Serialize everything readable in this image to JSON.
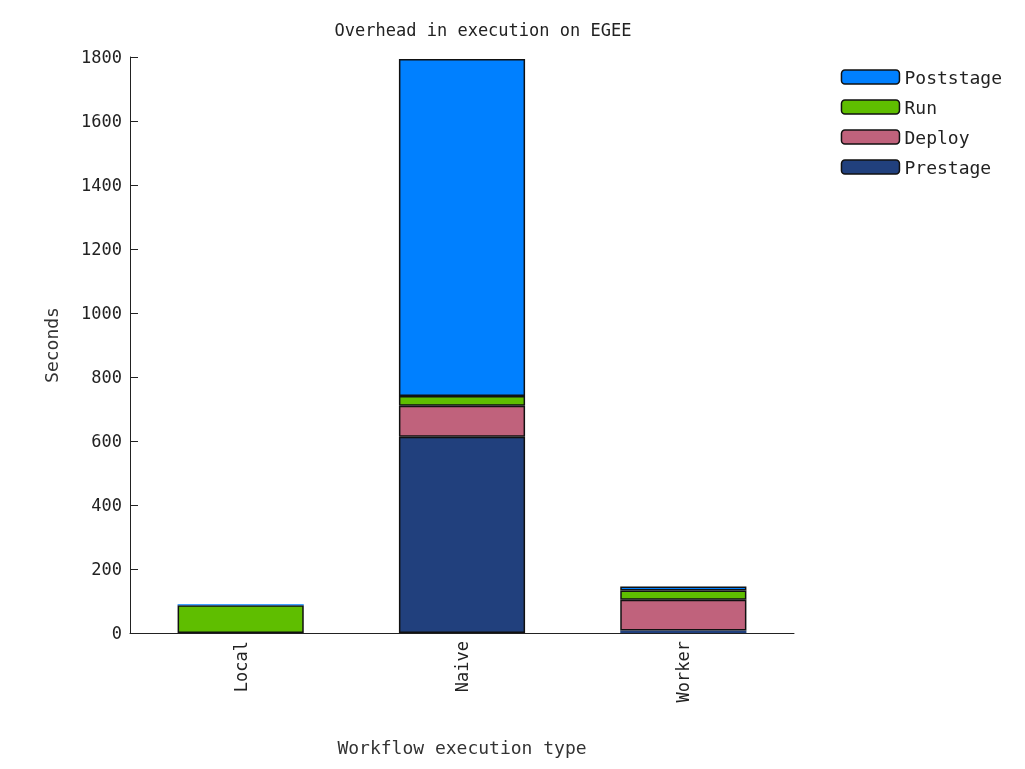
{
  "chart_data": {
    "type": "bar",
    "title": "Overhead in execution on EGEE",
    "xlabel": "Workflow execution type",
    "ylabel": "Seconds",
    "categories": [
      "Local",
      "Naive",
      "Worker"
    ],
    "stacked": true,
    "series": [
      {
        "name": "Prestage",
        "color": "#21407d",
        "values": [
          0,
          613,
          8
        ]
      },
      {
        "name": "Deploy",
        "color": "#c0627c",
        "values": [
          0,
          97,
          96
        ]
      },
      {
        "name": "Run",
        "color": "#5fbe00",
        "values": [
          87,
          31,
          29
        ]
      },
      {
        "name": "Poststage",
        "color": "#0080ff",
        "values": [
          3,
          1053,
          12
        ]
      }
    ],
    "ylim": [
      0,
      1800
    ],
    "yticks": [
      0,
      200,
      400,
      600,
      800,
      1000,
      1200,
      1400,
      1600,
      1800
    ],
    "grid": false,
    "legend": "top right"
  }
}
